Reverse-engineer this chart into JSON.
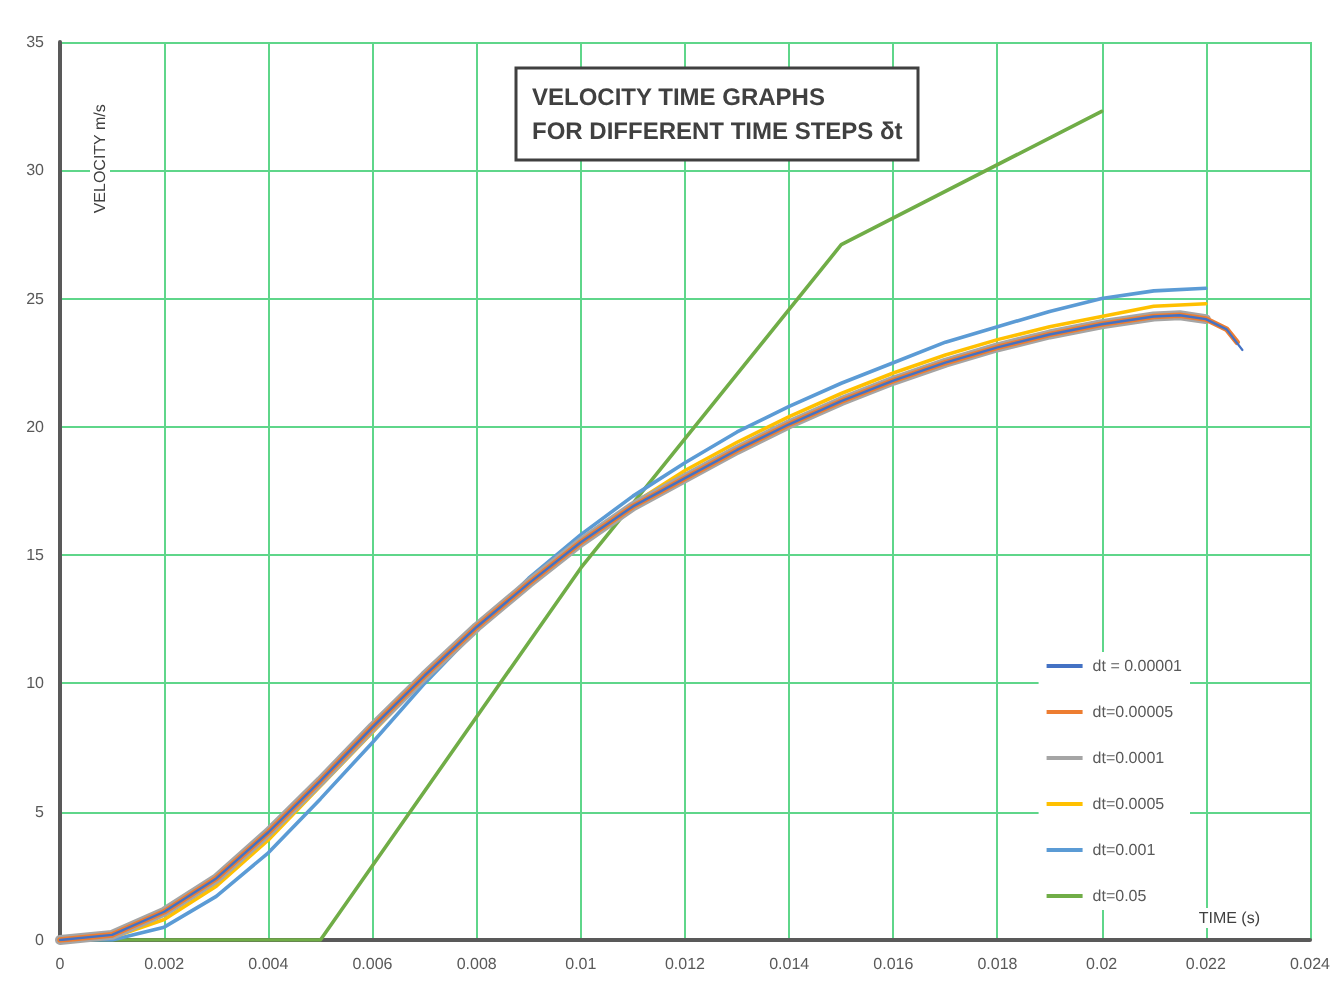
{
  "chart_data": {
    "type": "line",
    "title": "VELOCITY TIME GRAPHS\nFOR DIFFERENT TIME STEPS δt",
    "xlabel": "TIME (s)",
    "ylabel": "VELOCITY m/s",
    "xlim": [
      0,
      0.024
    ],
    "xticks": [
      0,
      0.002,
      0.004,
      0.006,
      0.008,
      0.01,
      0.012,
      0.014,
      0.016,
      0.018,
      0.02,
      0.022,
      0.024
    ],
    "ylim": [
      0,
      35
    ],
    "yticks": [
      0,
      5,
      10,
      15,
      20,
      25,
      30,
      35
    ],
    "grid": true,
    "legend": "right",
    "marker": "none",
    "line_style": "solid",
    "series": [
      {
        "name": "dt = 0.00001",
        "color": "#4472c4",
        "x": [
          0,
          0.001,
          0.002,
          0.003,
          0.004,
          0.005,
          0.006,
          0.007,
          0.008,
          0.009,
          0.01,
          0.011,
          0.012,
          0.013,
          0.014,
          0.015,
          0.016,
          0.017,
          0.018,
          0.019,
          0.02,
          0.021,
          0.0215,
          0.022,
          0.0224,
          0.0227
        ],
        "values": [
          0,
          0.2,
          1.1,
          2.4,
          4.2,
          6.2,
          8.3,
          10.3,
          12.2,
          13.9,
          15.5,
          16.9,
          18.0,
          19.1,
          20.1,
          21.0,
          21.8,
          22.5,
          23.1,
          23.6,
          24.0,
          24.3,
          24.35,
          24.2,
          23.8,
          23.0
        ]
      },
      {
        "name": "dt=0.00005",
        "color": "#ed7d31",
        "x": [
          0,
          0.001,
          0.002,
          0.003,
          0.004,
          0.005,
          0.006,
          0.007,
          0.008,
          0.009,
          0.01,
          0.011,
          0.012,
          0.013,
          0.014,
          0.015,
          0.016,
          0.017,
          0.018,
          0.019,
          0.02,
          0.021,
          0.0215,
          0.022,
          0.0224,
          0.0226
        ],
        "values": [
          0,
          0.2,
          1.1,
          2.4,
          4.2,
          6.2,
          8.3,
          10.3,
          12.2,
          13.9,
          15.5,
          16.9,
          18.0,
          19.1,
          20.1,
          21.0,
          21.8,
          22.5,
          23.1,
          23.6,
          24.0,
          24.3,
          24.35,
          24.2,
          23.8,
          23.3
        ]
      },
      {
        "name": "dt=0.0001",
        "color": "#a5a5a5",
        "x": [
          0,
          0.001,
          0.002,
          0.003,
          0.004,
          0.005,
          0.006,
          0.007,
          0.008,
          0.009,
          0.01,
          0.011,
          0.012,
          0.013,
          0.014,
          0.015,
          0.016,
          0.017,
          0.018,
          0.019,
          0.02,
          0.021,
          0.0215,
          0.022
        ],
        "values": [
          0,
          0.2,
          1.1,
          2.4,
          4.2,
          6.2,
          8.3,
          10.3,
          12.2,
          13.9,
          15.5,
          16.9,
          18.0,
          19.1,
          20.1,
          21.0,
          21.8,
          22.5,
          23.1,
          23.6,
          24.0,
          24.3,
          24.35,
          24.2
        ]
      },
      {
        "name": "dt=0.0005",
        "color": "#ffc000",
        "x": [
          0,
          0.001,
          0.002,
          0.003,
          0.004,
          0.005,
          0.006,
          0.007,
          0.008,
          0.009,
          0.01,
          0.011,
          0.012,
          0.013,
          0.014,
          0.015,
          0.016,
          0.017,
          0.018,
          0.019,
          0.02,
          0.021,
          0.022
        ],
        "values": [
          0,
          0.1,
          0.8,
          2.1,
          3.9,
          6.0,
          8.1,
          10.2,
          12.2,
          14.0,
          15.6,
          17.0,
          18.3,
          19.4,
          20.4,
          21.3,
          22.1,
          22.8,
          23.4,
          23.9,
          24.3,
          24.7,
          24.8
        ]
      },
      {
        "name": "dt=0.001",
        "color": "#5b9bd5",
        "x": [
          0,
          0.001,
          0.002,
          0.003,
          0.004,
          0.005,
          0.006,
          0.007,
          0.008,
          0.009,
          0.01,
          0.011,
          0.012,
          0.013,
          0.014,
          0.015,
          0.016,
          0.017,
          0.018,
          0.019,
          0.02,
          0.021,
          0.022
        ],
        "values": [
          0,
          0,
          0.5,
          1.7,
          3.4,
          5.5,
          7.7,
          10.0,
          12.1,
          14.1,
          15.8,
          17.3,
          18.6,
          19.8,
          20.8,
          21.7,
          22.5,
          23.3,
          23.9,
          24.5,
          25.0,
          25.3,
          25.4
        ]
      },
      {
        "name": "dt=0.05",
        "color": "#70ad47",
        "x": [
          0,
          0.005,
          0.01,
          0.015,
          0.02
        ],
        "values": [
          0,
          0,
          14.5,
          27.1,
          32.3
        ]
      }
    ]
  }
}
